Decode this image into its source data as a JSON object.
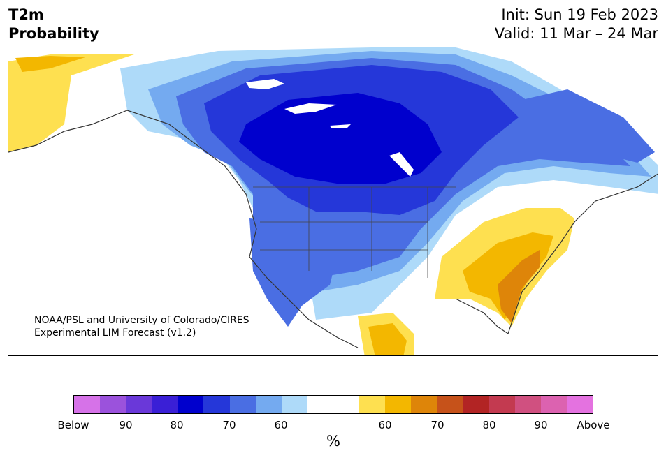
{
  "title": {
    "line1": "T2m",
    "line2": "Probability"
  },
  "init": "Init: Sun 19 Feb 2023",
  "valid": "Valid: 11 Mar – 24 Mar",
  "credit": {
    "line1": "NOAA/PSL and University of Colorado/CIRES",
    "line2": "Experimental LIM Forecast (v1.2)"
  },
  "colorbar": {
    "unit": "%",
    "colors": [
      "#d672e8",
      "#9b52dc",
      "#6a38d9",
      "#3a1fd6",
      "#0000cd",
      "#2537d9",
      "#4a6ee3",
      "#74aaf0",
      "#aedaf9",
      "#ffffff",
      "#ffffff",
      "#fee050",
      "#f3b700",
      "#de8509",
      "#c6521a",
      "#b22424",
      "#c33a50",
      "#d05080",
      "#dc62b0",
      "#e472e0"
    ],
    "ticks": [
      "Below",
      "90",
      "80",
      "70",
      "60",
      "60",
      "70",
      "80",
      "90",
      "Above"
    ]
  },
  "legend_colors": {
    "below_strong": "#0000cd",
    "below_mid": "#2537d9",
    "below_light": "#74aaf0",
    "above_light": "#fee050",
    "above_mid": "#f3b700",
    "above_strong": "#de8509"
  }
}
